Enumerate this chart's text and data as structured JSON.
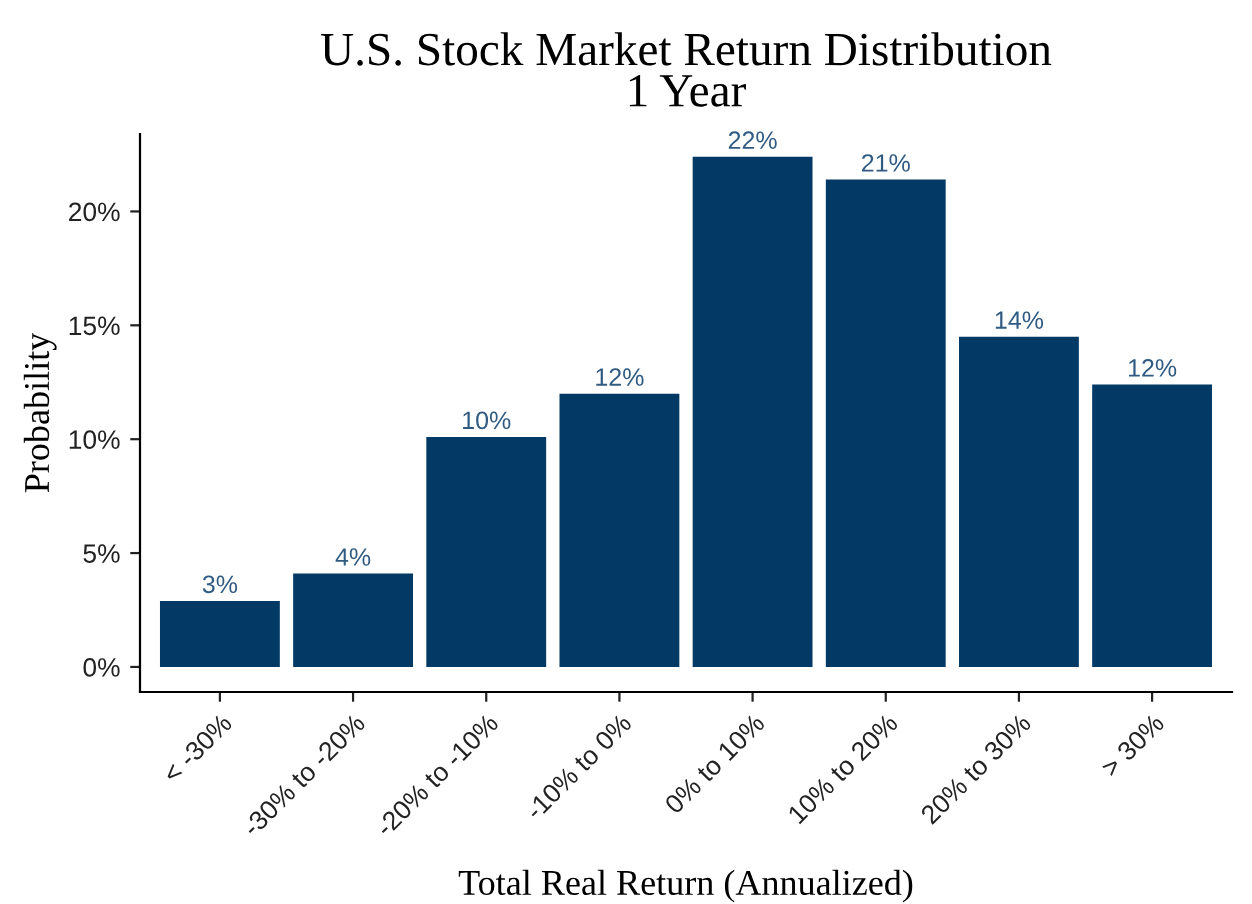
{
  "chart_data": {
    "type": "bar",
    "title": "U.S. Stock Market Return Distribution\n1 Year",
    "xlabel": "Total Real Return (Annualized)",
    "ylabel": "Probability",
    "categories": [
      "< -30%",
      "-30% to -20%",
      "-20% to -10%",
      "-10% to 0%",
      "0% to 10%",
      "10% to 20%",
      "20% to 30%",
      "> 30%"
    ],
    "values": [
      2.9,
      4.1,
      10.1,
      12.0,
      22.4,
      21.4,
      14.5,
      12.4
    ],
    "value_labels": [
      "3%",
      "4%",
      "10%",
      "12%",
      "22%",
      "21%",
      "14%",
      "12%"
    ],
    "color": "#023a65",
    "ylim": [
      -1.1,
      23.4
    ],
    "yticks": [
      {
        "value": 0,
        "label": "0%"
      },
      {
        "value": 5,
        "label": "5%"
      },
      {
        "value": 10,
        "label": "10%"
      },
      {
        "value": 15,
        "label": "15%"
      },
      {
        "value": 20,
        "label": "20%"
      }
    ],
    "grid": false,
    "legend": false
  }
}
